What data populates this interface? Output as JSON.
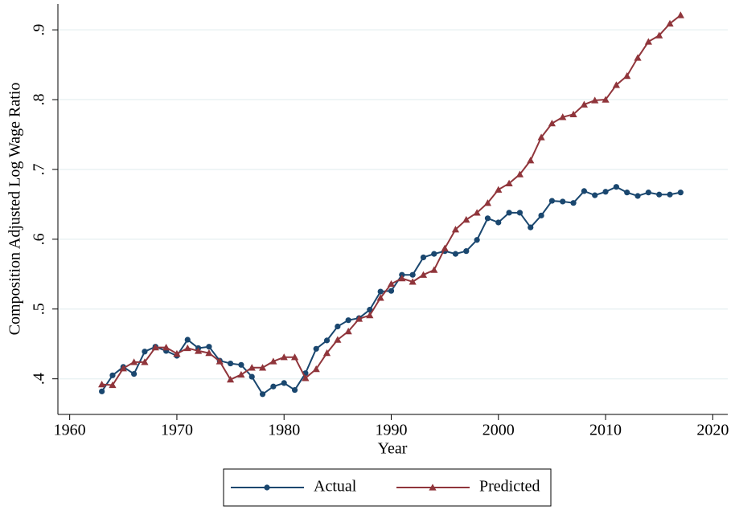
{
  "chart_data": {
    "type": "line",
    "x_label": "Year",
    "y_label": "Composition Adjusted Log Wage Ratio",
    "x": [
      1963,
      1964,
      1965,
      1966,
      1967,
      1968,
      1969,
      1970,
      1971,
      1972,
      1973,
      1974,
      1975,
      1976,
      1977,
      1978,
      1979,
      1980,
      1981,
      1982,
      1983,
      1984,
      1985,
      1986,
      1987,
      1988,
      1989,
      1990,
      1991,
      1992,
      1993,
      1994,
      1995,
      1996,
      1997,
      1998,
      1999,
      2000,
      2001,
      2002,
      2003,
      2004,
      2005,
      2006,
      2007,
      2008,
      2009,
      2010,
      2011,
      2012,
      2013,
      2014,
      2015,
      2016,
      2017
    ],
    "series": [
      {
        "name": "Actual",
        "color": "#1a476f",
        "marker": "circle",
        "values": [
          0.382,
          0.405,
          0.417,
          0.407,
          0.439,
          0.446,
          0.44,
          0.433,
          0.456,
          0.444,
          0.446,
          0.426,
          0.422,
          0.42,
          0.403,
          0.378,
          0.389,
          0.394,
          0.384,
          0.408,
          0.443,
          0.455,
          0.475,
          0.484,
          0.487,
          0.499,
          0.525,
          0.526,
          0.549,
          0.549,
          0.574,
          0.579,
          0.583,
          0.579,
          0.583,
          0.599,
          0.63,
          0.624,
          0.638,
          0.638,
          0.617,
          0.634,
          0.655,
          0.654,
          0.652,
          0.669,
          0.663,
          0.668,
          0.675,
          0.667,
          0.662,
          0.667,
          0.664,
          0.664,
          0.667
        ]
      },
      {
        "name": "Predicted",
        "color": "#90353b",
        "marker": "triangle",
        "values": [
          0.392,
          0.391,
          0.415,
          0.424,
          0.424,
          0.445,
          0.445,
          0.436,
          0.444,
          0.44,
          0.437,
          0.425,
          0.399,
          0.406,
          0.416,
          0.416,
          0.425,
          0.431,
          0.431,
          0.401,
          0.414,
          0.437,
          0.456,
          0.468,
          0.486,
          0.491,
          0.516,
          0.536,
          0.544,
          0.539,
          0.549,
          0.556,
          0.587,
          0.614,
          0.628,
          0.638,
          0.652,
          0.671,
          0.68,
          0.693,
          0.713,
          0.746,
          0.766,
          0.775,
          0.779,
          0.793,
          0.799,
          0.8,
          0.821,
          0.834,
          0.86,
          0.883,
          0.892,
          0.909,
          0.921
        ]
      }
    ],
    "xlim": [
      1958.9,
      2021.4
    ],
    "ylim": [
      0.349,
      0.937
    ],
    "xticks": [
      1960,
      1970,
      1980,
      1990,
      2000,
      2010,
      2020
    ],
    "yticks": [
      {
        "value": 0.4,
        "label": ".4"
      },
      {
        "value": 0.5,
        "label": ".5"
      },
      {
        "value": 0.6,
        "label": ".6"
      },
      {
        "value": 0.7,
        "label": ".7"
      },
      {
        "value": 0.8,
        "label": ".8"
      },
      {
        "value": 0.9,
        "label": ".9"
      }
    ],
    "grid": true,
    "legend": "bottom"
  }
}
